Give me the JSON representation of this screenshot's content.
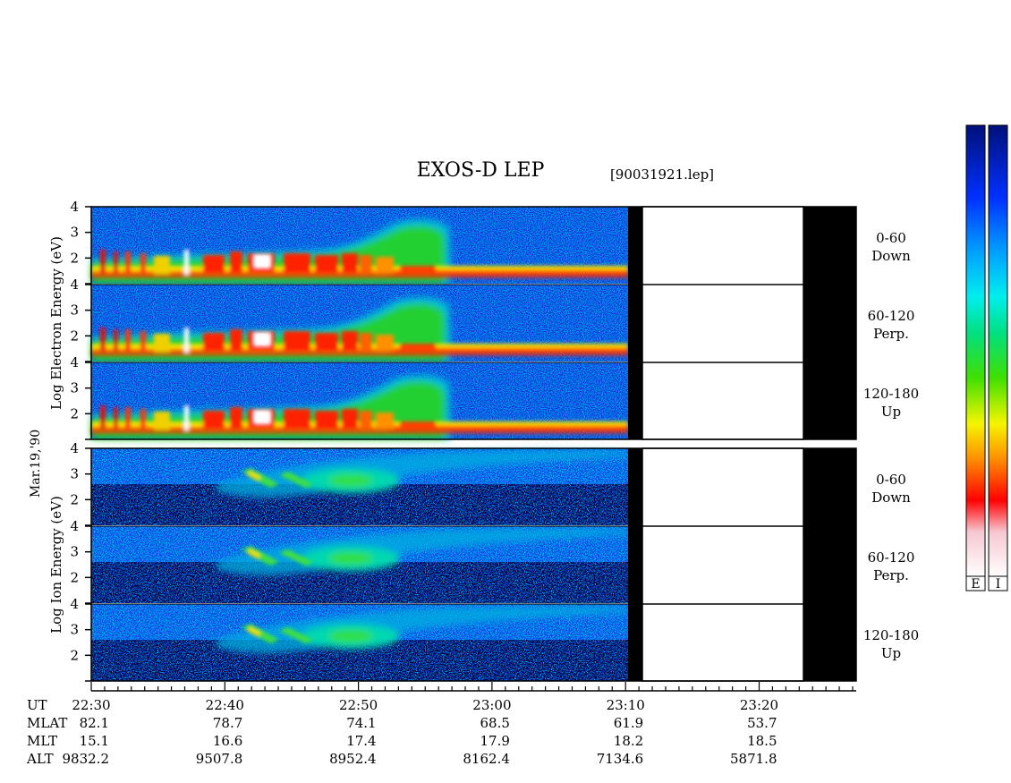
{
  "chart_data": {
    "type": "heatmap",
    "title": "EXOS-D LEP",
    "file_label": "[90031921.lep]",
    "date_label": "Mar.19,'90",
    "electron_ylabel": "Log Electron Energy (eV)",
    "ion_ylabel": "Log Ion Energy (eV)",
    "ylim": [
      1,
      4
    ],
    "yticks": [
      "1",
      "2",
      "3",
      "4"
    ],
    "colorbar_labels": [
      "E",
      "I"
    ],
    "colorbar_colors": [
      "#fbe6ee",
      "#ff0000",
      "#ff9000",
      "#f0f000",
      "#00d400",
      "#00eeee",
      "#0040ff",
      "#00108a"
    ],
    "panels": [
      {
        "group": "Electron",
        "pitch": "0-60",
        "dir": "Down"
      },
      {
        "group": "Electron",
        "pitch": "60-120",
        "dir": "Perp."
      },
      {
        "group": "Electron",
        "pitch": "120-180",
        "dir": "Up"
      },
      {
        "group": "Ion",
        "pitch": "0-60",
        "dir": "Down"
      },
      {
        "group": "Ion",
        "pitch": "60-120",
        "dir": "Perp."
      },
      {
        "group": "Ion",
        "pitch": "120-180",
        "dir": "Up"
      }
    ],
    "time_axis": {
      "row_labels": [
        "UT",
        "MLAT",
        "MLT",
        "ALT"
      ],
      "ticks": [
        {
          "ut": "22:30",
          "mlat": "82.1",
          "mlt": "15.1",
          "alt": "9832.2"
        },
        {
          "ut": "22:40",
          "mlat": "78.7",
          "mlt": "16.6",
          "alt": "9507.8"
        },
        {
          "ut": "22:50",
          "mlat": "74.1",
          "mlt": "17.4",
          "alt": "8952.4"
        },
        {
          "ut": "23:00",
          "mlat": "68.5",
          "mlt": "17.9",
          "alt": "8162.4"
        },
        {
          "ut": "23:10",
          "mlat": "61.9",
          "mlt": "18.2",
          "alt": "7134.6"
        },
        {
          "ut": "23:20",
          "mlat": "53.7",
          "mlt": "18.5",
          "alt": "5871.8"
        }
      ],
      "data_end": "23:10",
      "gap": [
        "23:10:40",
        "23:22:00"
      ]
    }
  }
}
